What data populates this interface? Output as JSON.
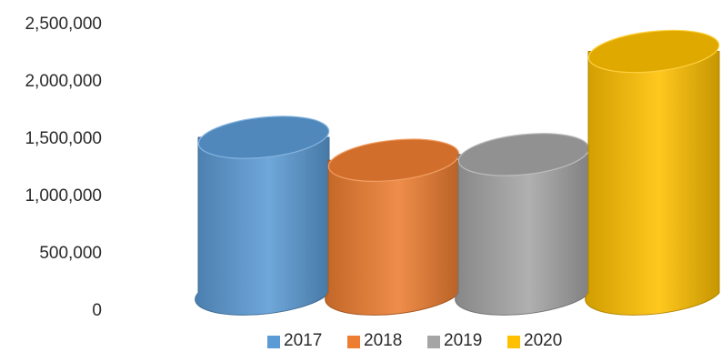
{
  "chart_data": {
    "type": "bar",
    "style": "3d-cylinder",
    "title": "",
    "xlabel": "",
    "ylabel": "",
    "categories": [
      "2017",
      "2018",
      "2019",
      "2020"
    ],
    "values": [
      1500000,
      1300000,
      1350000,
      2250000
    ],
    "colors": [
      "#5b9bd5",
      "#ed7d31",
      "#a5a5a5",
      "#ffc000"
    ],
    "ylim": [
      0,
      2500000
    ],
    "y_ticks": [
      "0",
      "500,000",
      "1,000,000",
      "1,500,000",
      "2,000,000",
      "2,500,000"
    ],
    "grid": false,
    "legend": {
      "position": "bottom",
      "entries": [
        "2017",
        "2018",
        "2019",
        "2020"
      ]
    }
  }
}
